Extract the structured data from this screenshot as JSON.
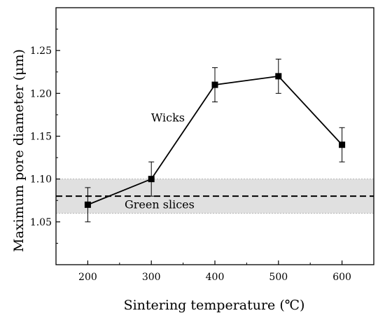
{
  "chart_data": {
    "type": "line",
    "xlabel": "Sintering temperature (℃)",
    "ylabel": "Maximum pore diameter (μm)",
    "xlim": [
      150,
      650
    ],
    "ylim": [
      1.0,
      1.3
    ],
    "xticks": [
      200,
      300,
      400,
      500,
      600
    ],
    "yticks": [
      1.05,
      1.1,
      1.15,
      1.2,
      1.25
    ],
    "x_tick_labels": [
      "200",
      "300",
      "400",
      "500",
      "600"
    ],
    "y_tick_labels": [
      "1.05",
      "1.10",
      "1.15",
      "1.20",
      "1.25"
    ],
    "grid": false,
    "series": [
      {
        "name": "Wicks",
        "marker": "square",
        "color": "#000000",
        "x": [
          200,
          300,
          400,
          500,
          600
        ],
        "y": [
          1.07,
          1.1,
          1.21,
          1.22,
          1.14
        ],
        "error": [
          0.02,
          0.02,
          0.02,
          0.02,
          0.02
        ]
      }
    ],
    "reference": {
      "name": "Green slices",
      "value": 1.08,
      "band": [
        1.06,
        1.1
      ],
      "line_style": "dashed",
      "band_color": "#e0e0e0"
    },
    "annotations": [
      {
        "text": "Wicks",
        "x": 275,
        "y": 1.167
      },
      {
        "text": "Green slices",
        "x": 230,
        "y": 1.066
      }
    ]
  }
}
